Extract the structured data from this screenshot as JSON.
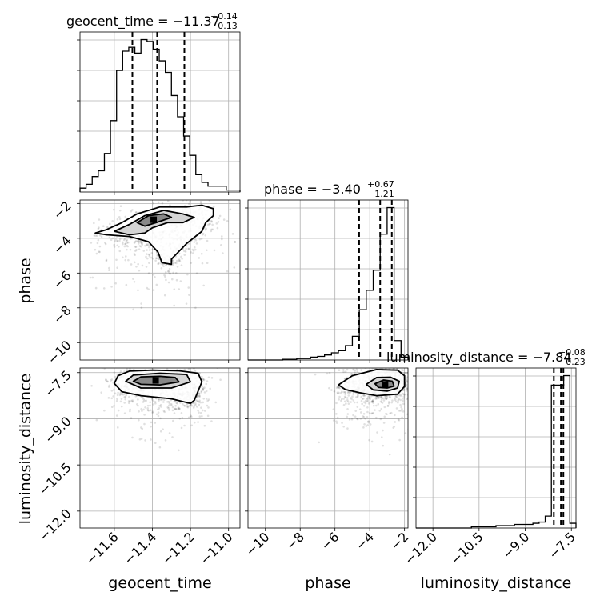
{
  "chart_data": {
    "type": "corner",
    "parameters": [
      "geocent_time",
      "phase",
      "luminosity_distance"
    ],
    "ranges": {
      "geocent_time": [
        -11.78,
        -10.94
      ],
      "phase": [
        -11.0,
        -1.8
      ],
      "luminosity_distance": [
        -12.55,
        -7.35
      ]
    },
    "ticks": {
      "geocent_time": {
        "values": [
          -11.6,
          -11.4,
          -11.2,
          -11.0
        ],
        "labels": [
          "−11.6",
          "−11.4",
          "−11.2",
          "−11.0"
        ]
      },
      "phase": {
        "values": [
          -10,
          -8,
          -6,
          -4,
          -2
        ],
        "labels": [
          "−10",
          "−8",
          "−6",
          "−4",
          "−2"
        ]
      },
      "luminosity_distance": {
        "values": [
          -12.0,
          -10.5,
          -9.0,
          -7.5
        ],
        "labels": [
          "−12.0",
          "−10.5",
          "−9.0",
          "−7.5"
        ]
      }
    },
    "grid": true,
    "histograms": {
      "geocent_time": {
        "title_prefix": "geocent_time = −11.37",
        "title_sup": "+0.14",
        "title_sub": "−0.13",
        "quantiles": [
          -11.505,
          -11.375,
          -11.232
        ],
        "edges": [
          -11.78,
          -11.748,
          -11.716,
          -11.684,
          -11.652,
          -11.62,
          -11.588,
          -11.556,
          -11.524,
          -11.492,
          -11.46,
          -11.428,
          -11.396,
          -11.364,
          -11.332,
          -11.3,
          -11.268,
          -11.236,
          -11.204,
          -11.172,
          -11.14,
          -11.108,
          -11.076,
          -11.044,
          -11.012,
          -10.98,
          -10.94
        ],
        "counts": [
          2,
          4,
          8,
          11,
          20,
          37,
          63,
          73,
          75,
          72,
          79,
          78,
          74,
          68,
          62,
          50,
          39,
          29,
          19,
          9,
          5,
          3,
          3,
          3,
          1,
          1
        ]
      },
      "phase": {
        "title_prefix": "phase = −3.40",
        "title_sup": "+0.67",
        "title_sub": "−1.21",
        "quantiles": [
          -4.61,
          -3.4,
          -2.73
        ],
        "edges": [
          -11.0,
          -10.6,
          -10.2,
          -9.8,
          -9.4,
          -9.0,
          -8.6,
          -8.2,
          -7.8,
          -7.4,
          -7.0,
          -6.6,
          -6.2,
          -5.8,
          -5.4,
          -5.0,
          -4.6,
          -4.2,
          -3.8,
          -3.4,
          -3.0,
          -2.6,
          -2.2,
          -1.8
        ],
        "counts": [
          0,
          0,
          0,
          0,
          0,
          1,
          1,
          2,
          2,
          4,
          5,
          7,
          10,
          13,
          20,
          33,
          70,
          97,
          125,
          175,
          212,
          27,
          4
        ]
      },
      "luminosity_distance": {
        "title_prefix": "luminosity_distance = −7.84",
        "title_sup": "+0.08",
        "title_sub": "−0.23",
        "quantiles": [
          -8.07,
          -7.84,
          -7.76
        ],
        "edges": [
          -12.55,
          -12.35,
          -12.15,
          -11.95,
          -11.75,
          -11.55,
          -11.35,
          -11.15,
          -10.95,
          -10.75,
          -10.55,
          -10.35,
          -10.15,
          -9.95,
          -9.75,
          -9.55,
          -9.35,
          -9.15,
          -8.95,
          -8.75,
          -8.55,
          -8.35,
          -8.15,
          -7.95,
          -7.75,
          -7.55,
          -7.35
        ],
        "counts": [
          0,
          0,
          0,
          0,
          0,
          0,
          0,
          0,
          0,
          1,
          1,
          1,
          1,
          2,
          2,
          2,
          3,
          3,
          3,
          4,
          5,
          10,
          120,
          120,
          128,
          4
        ]
      }
    },
    "contours": {
      "phase_vs_geocent_time": {
        "x": "geocent_time",
        "y": "phase",
        "levels": [
          [
            [
              -11.64,
              -3.8
            ],
            [
              -11.7,
              -3.7
            ],
            [
              -11.64,
              -3.5
            ],
            [
              -11.56,
              -3.1
            ],
            [
              -11.48,
              -2.6
            ],
            [
              -11.36,
              -2.2
            ],
            [
              -11.22,
              -2.2
            ],
            [
              -11.14,
              -2.1
            ],
            [
              -11.08,
              -2.3
            ],
            [
              -11.08,
              -2.7
            ],
            [
              -11.12,
              -3.1
            ],
            [
              -11.14,
              -3.6
            ],
            [
              -11.22,
              -4.3
            ],
            [
              -11.3,
              -5.2
            ],
            [
              -11.3,
              -5.5
            ],
            [
              -11.35,
              -5.4
            ],
            [
              -11.37,
              -4.8
            ],
            [
              -11.42,
              -4.2
            ],
            [
              -11.52,
              -3.9
            ]
          ],
          [
            [
              -11.6,
              -3.6
            ],
            [
              -11.52,
              -3.2
            ],
            [
              -11.44,
              -2.7
            ],
            [
              -11.34,
              -2.4
            ],
            [
              -11.24,
              -2.6
            ],
            [
              -11.18,
              -2.8
            ],
            [
              -11.24,
              -3.1
            ],
            [
              -11.32,
              -3.1
            ],
            [
              -11.4,
              -3.4
            ],
            [
              -11.44,
              -3.7
            ],
            [
              -11.52,
              -3.8
            ]
          ],
          [
            [
              -11.48,
              -3.1
            ],
            [
              -11.42,
              -2.7
            ],
            [
              -11.34,
              -2.6
            ],
            [
              -11.3,
              -2.8
            ],
            [
              -11.38,
              -3.1
            ],
            [
              -11.44,
              -3.3
            ]
          ]
        ]
      },
      "luminosity_distance_vs_geocent_time": {
        "x": "geocent_time",
        "y": "luminosity_distance",
        "levels": [
          [
            [
              -11.6,
              -7.85
            ],
            [
              -11.58,
              -7.6
            ],
            [
              -11.52,
              -7.45
            ],
            [
              -11.4,
              -7.42
            ],
            [
              -11.26,
              -7.44
            ],
            [
              -11.16,
              -7.52
            ],
            [
              -11.14,
              -7.8
            ],
            [
              -11.16,
              -8.1
            ],
            [
              -11.18,
              -8.4
            ],
            [
              -11.2,
              -8.5
            ],
            [
              -11.3,
              -8.35
            ],
            [
              -11.46,
              -8.25
            ],
            [
              -11.56,
              -8.12
            ]
          ],
          [
            [
              -11.54,
              -7.78
            ],
            [
              -11.5,
              -7.58
            ],
            [
              -11.36,
              -7.52
            ],
            [
              -11.22,
              -7.56
            ],
            [
              -11.2,
              -7.8
            ],
            [
              -11.3,
              -8.0
            ],
            [
              -11.46,
              -8.0
            ]
          ],
          [
            [
              -11.5,
              -7.78
            ],
            [
              -11.46,
              -7.64
            ],
            [
              -11.36,
              -7.62
            ],
            [
              -11.28,
              -7.66
            ],
            [
              -11.26,
              -7.8
            ],
            [
              -11.36,
              -7.9
            ],
            [
              -11.46,
              -7.88
            ]
          ]
        ]
      },
      "luminosity_distance_vs_phase": {
        "x": "phase",
        "y": "luminosity_distance",
        "levels": [
          [
            [
              -5.8,
              -7.9
            ],
            [
              -5.0,
              -7.6
            ],
            [
              -3.6,
              -7.4
            ],
            [
              -2.4,
              -7.42
            ],
            [
              -2.0,
              -7.6
            ],
            [
              -2.0,
              -7.95
            ],
            [
              -2.4,
              -8.2
            ],
            [
              -3.6,
              -8.25
            ],
            [
              -4.6,
              -8.15
            ],
            [
              -5.4,
              -8.05
            ]
          ],
          [
            [
              -4.2,
              -7.88
            ],
            [
              -3.6,
              -7.66
            ],
            [
              -2.8,
              -7.65
            ],
            [
              -2.3,
              -7.78
            ],
            [
              -2.4,
              -8.0
            ],
            [
              -3.0,
              -8.1
            ],
            [
              -3.8,
              -8.06
            ]
          ],
          [
            [
              -3.7,
              -7.86
            ],
            [
              -3.2,
              -7.74
            ],
            [
              -2.7,
              -7.78
            ],
            [
              -2.6,
              -7.94
            ],
            [
              -3.0,
              -8.0
            ],
            [
              -3.5,
              -7.98
            ]
          ]
        ]
      }
    },
    "axis_labels": {
      "bottom": [
        "geocent_time",
        "phase",
        "luminosity_distance"
      ],
      "left": [
        "phase",
        "luminosity_distance"
      ]
    }
  }
}
